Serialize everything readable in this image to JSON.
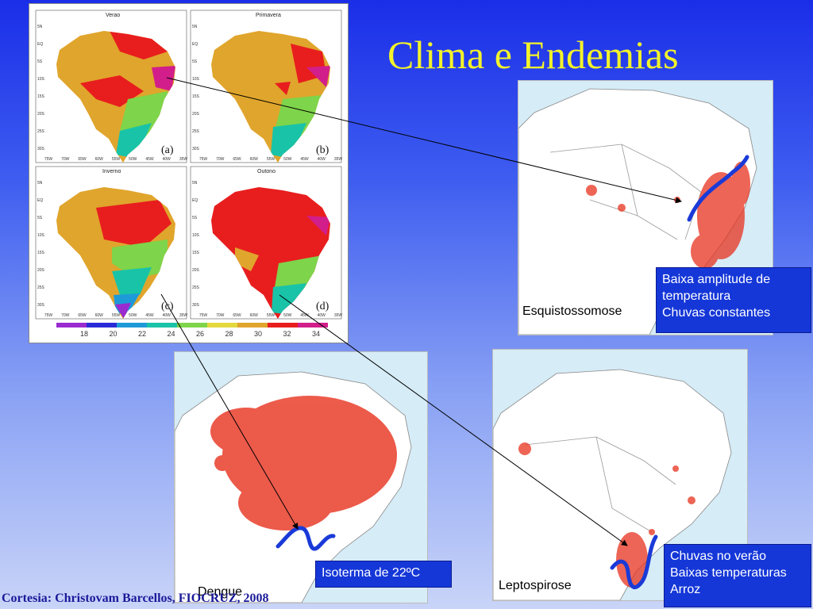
{
  "slide": {
    "title": "Clima e Endemias",
    "credit": "Cortesia: Christovam Barcellos, FIOCRUZ, 2008"
  },
  "climate_figure": {
    "panels": [
      {
        "season": "Verao",
        "letter": "(a)"
      },
      {
        "season": "Primavera",
        "letter": "(b)"
      },
      {
        "season": "Inverno",
        "letter": "(c)"
      },
      {
        "season": "Outono",
        "letter": "(d)"
      }
    ],
    "lat_ticks": [
      "5N",
      "EQ",
      "5S",
      "10S",
      "15S",
      "20S",
      "25S",
      "30S"
    ],
    "lon_ticks": [
      "75W",
      "70W",
      "65W",
      "60W",
      "55W",
      "50W",
      "45W",
      "40W",
      "35W"
    ],
    "legend_ticks": [
      "18",
      "20",
      "22",
      "24",
      "26",
      "28",
      "30",
      "32",
      "34"
    ],
    "legend_colors": [
      "#9a2bd0",
      "#2a2ad8",
      "#1e9ad8",
      "#19c3a8",
      "#7ed44a",
      "#e3d83c",
      "#e0a52c",
      "#e81e1e",
      "#d21e8a"
    ]
  },
  "maps": {
    "esquistossomose": {
      "caption": "Esquistossomose",
      "info_lines": [
        "Baixa amplitude de",
        "temperatura",
        "Chuvas constantes"
      ]
    },
    "dengue": {
      "caption": "Dengue",
      "info_lines": [
        "Isoterma de 22ºC"
      ]
    },
    "leptospirose": {
      "caption": "Leptospirose",
      "info_lines": [
        "Chuvas no verão",
        "Baixas temperaturas",
        "Arroz"
      ]
    }
  },
  "colors": {
    "title": "#f3f32a",
    "info_box": "#1537d8",
    "isoline": "#1a3ad8",
    "incidence": "#e8321e"
  }
}
